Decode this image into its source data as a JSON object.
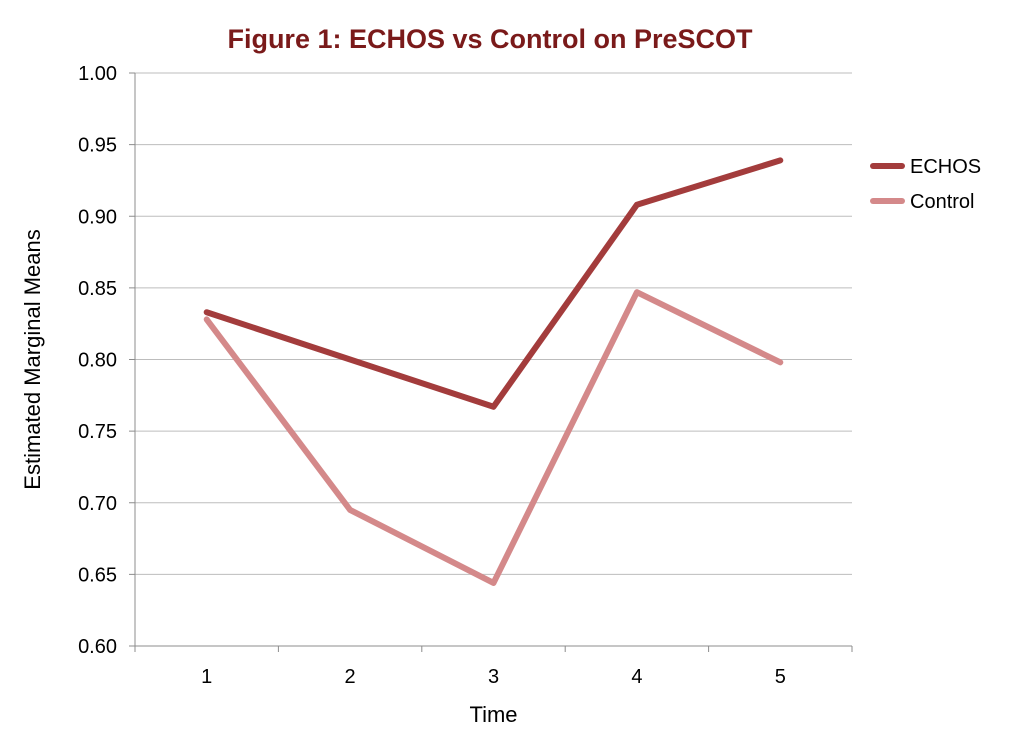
{
  "chart_data": {
    "type": "line",
    "title": "Figure 1: ECHOS vs Control on PreSCOT",
    "xlabel": "Time",
    "ylabel": "Estimated Marginal Means",
    "categories": [
      "1",
      "2",
      "3",
      "4",
      "5"
    ],
    "ylim": [
      0.6,
      1.0
    ],
    "yticks": [
      "0.60",
      "0.65",
      "0.70",
      "0.75",
      "0.80",
      "0.85",
      "0.90",
      "0.95",
      "1.00"
    ],
    "grid": true,
    "legend_position": "right",
    "series": [
      {
        "name": "ECHOS",
        "color": "#a33c3c",
        "values": [
          0.833,
          0.8,
          0.767,
          0.908,
          0.939
        ]
      },
      {
        "name": "Control",
        "color": "#d4898a",
        "values": [
          0.828,
          0.695,
          0.644,
          0.847,
          0.798
        ]
      }
    ]
  }
}
